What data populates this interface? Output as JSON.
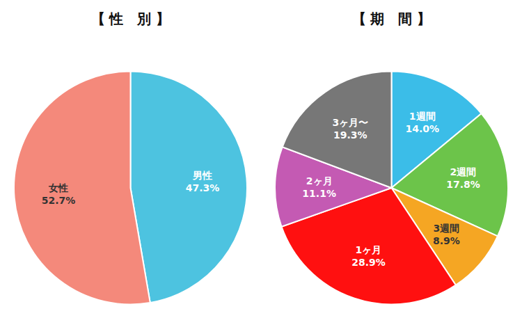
{
  "chart_data": [
    {
      "type": "pie",
      "title": "【 性　別 】",
      "categories": [
        "男性",
        "女性"
      ],
      "values": [
        47.3,
        52.7
      ],
      "value_labels": [
        "47.3%",
        "52.7%"
      ],
      "colors": [
        "#4DC3E0",
        "#F4897B"
      ],
      "data_labels": true
    },
    {
      "type": "pie",
      "title": "【 期　間 】",
      "categories": [
        "1週間",
        "2週間",
        "3週間",
        "1ヶ月",
        "2ヶ月",
        "3ヶ月〜"
      ],
      "values": [
        14.0,
        17.8,
        8.9,
        28.9,
        11.1,
        19.3
      ],
      "value_labels": [
        "14.0%",
        "17.8%",
        "8.9%",
        "28.9%",
        "11.1%",
        "19.3%"
      ],
      "colors": [
        "#3BBDE8",
        "#6CC44A",
        "#F5A623",
        "#FF1010",
        "#C45AB3",
        "#777777"
      ],
      "data_labels": true
    }
  ]
}
